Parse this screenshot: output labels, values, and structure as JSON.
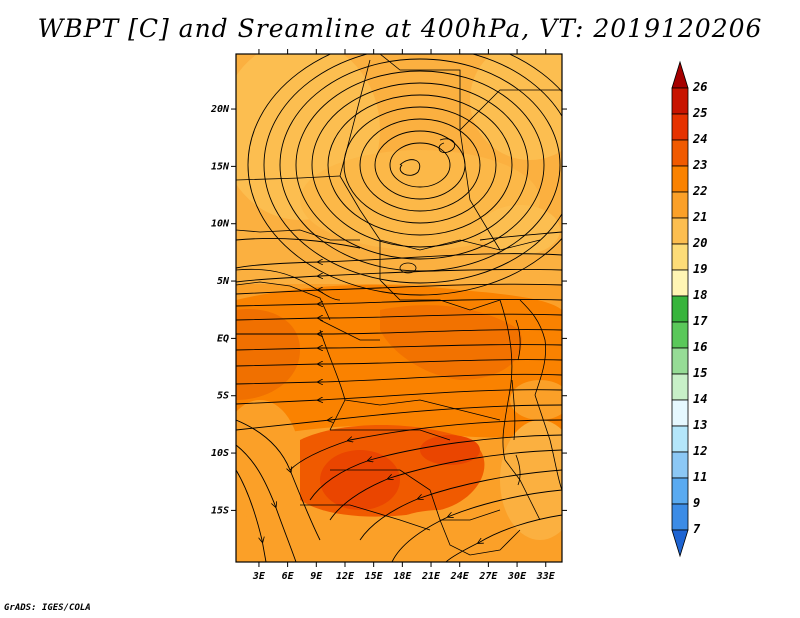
{
  "title": "WBPT [C] and Sreamline at 400hPa, VT: 2019120206",
  "credit": "GrADS: IGES/COLA",
  "map": {
    "lat_labels": [
      {
        "lat": 20,
        "text": "20N"
      },
      {
        "lat": 15,
        "text": "15N"
      },
      {
        "lat": 10,
        "text": "10N"
      },
      {
        "lat": 5,
        "text": "5N"
      },
      {
        "lat": 0,
        "text": "EQ"
      },
      {
        "lat": -5,
        "text": "5S"
      },
      {
        "lat": -10,
        "text": "10S"
      },
      {
        "lat": -15,
        "text": "15S"
      }
    ],
    "lon_labels": [
      {
        "lon": 3,
        "text": "3E"
      },
      {
        "lon": 6,
        "text": "6E"
      },
      {
        "lon": 9,
        "text": "9E"
      },
      {
        "lon": 12,
        "text": "12E"
      },
      {
        "lon": 15,
        "text": "15E"
      },
      {
        "lon": 18,
        "text": "18E"
      },
      {
        "lon": 21,
        "text": "21E"
      },
      {
        "lon": 24,
        "text": "24E"
      },
      {
        "lon": 27,
        "text": "27E"
      },
      {
        "lon": 30,
        "text": "30E"
      },
      {
        "lon": 33,
        "text": "33E"
      }
    ]
  },
  "colorbar": {
    "levels": [
      {
        "label": "26",
        "color": "#a50000"
      },
      {
        "label": "25",
        "color": "#c81400"
      },
      {
        "label": "24",
        "color": "#e63200"
      },
      {
        "label": "23",
        "color": "#f05a00"
      },
      {
        "label": "22",
        "color": "#fa8200"
      },
      {
        "label": "21",
        "color": "#fba028"
      },
      {
        "label": "20",
        "color": "#fcbe50"
      },
      {
        "label": "19",
        "color": "#fddc78"
      },
      {
        "label": "18",
        "color": "#fff5b4"
      },
      {
        "label": "17",
        "color": "#37b43c"
      },
      {
        "label": "16",
        "color": "#5ac85a"
      },
      {
        "label": "15",
        "color": "#96dc96"
      },
      {
        "label": "14",
        "color": "#c8f0c8"
      },
      {
        "label": "13",
        "color": "#e6f8ff"
      },
      {
        "label": "12",
        "color": "#b4e6fa"
      },
      {
        "label": "11",
        "color": "#8cc8f5"
      },
      {
        "label": "9",
        "color": "#5aaaf0"
      },
      {
        "label": "7",
        "color": "#3c8ce6"
      },
      {
        "label": "",
        "color": "#1e64d2"
      }
    ]
  }
}
